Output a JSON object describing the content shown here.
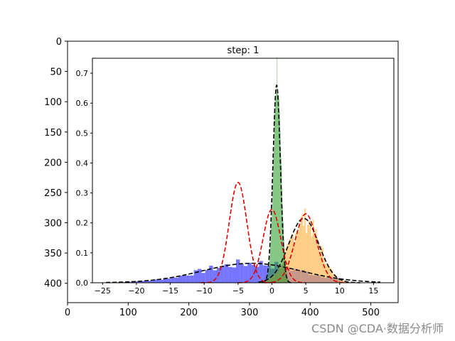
{
  "chart_data": [
    {
      "role": "outer-image-axes",
      "type": "image",
      "x_ticks": [
        "0",
        "100",
        "200",
        "300",
        "400",
        "500"
      ],
      "y_ticks": [
        "0",
        "50",
        "100",
        "150",
        "200",
        "250",
        "300",
        "350",
        "400"
      ],
      "xlim": [
        0,
        545
      ],
      "ylim": [
        432,
        0
      ]
    },
    {
      "role": "inner-plot",
      "type": "histogram-with-density-curves",
      "title": "step: 1",
      "xlim": [
        -26.5,
        18
      ],
      "ylim": [
        0,
        0.75
      ],
      "x_ticks": [
        "−25",
        "−20",
        "−15",
        "−10",
        "−5",
        "0",
        "5",
        "10",
        "15"
      ],
      "y_ticks": [
        "0.0",
        "0.1",
        "0.2",
        "0.3",
        "0.4",
        "0.5",
        "0.6",
        "0.7"
      ],
      "grid": false,
      "histograms": [
        {
          "color": "#4040ff",
          "opacity": 0.72,
          "dist": "normal",
          "mean": -3,
          "sd": 7.3,
          "peak": 0.065,
          "range": [
            -24,
            10
          ],
          "noise": 0.25
        },
        {
          "color": "#ffb03c",
          "opacity": 0.62,
          "dist": "normal",
          "mean": 4.8,
          "sd": 2.2,
          "peak": 0.21,
          "range": [
            -1,
            11
          ],
          "noise": 0.2
        },
        {
          "color": "#2c9c2c",
          "opacity": 0.62,
          "dist": "normal",
          "mean": 0.8,
          "sd": 0.55,
          "peak": 0.7,
          "range": [
            -1.2,
            2.8
          ],
          "noise": 0.1
        }
      ],
      "curves": [
        {
          "color": "#000000",
          "mean": -3,
          "sd": 7.3,
          "peak": 0.065,
          "from": -24.5,
          "to": 16
        },
        {
          "color": "#000000",
          "mean": 0.7,
          "sd": 0.55,
          "peak": 0.66,
          "from": -1.5,
          "to": 3
        },
        {
          "color": "#000000",
          "mean": 4.7,
          "sd": 2.2,
          "peak": 0.215,
          "from": -2,
          "to": 13
        },
        {
          "color": "#e00000",
          "mean": -5,
          "sd": 1.3,
          "peak": 0.335,
          "from": -10.5,
          "to": 0.5
        },
        {
          "color": "#e00000",
          "mean": 0,
          "sd": 1.3,
          "peak": 0.245,
          "from": -5,
          "to": 5
        },
        {
          "color": "#e00000",
          "mean": 5,
          "sd": 1.6,
          "peak": 0.23,
          "from": -1,
          "to": 11
        }
      ]
    }
  ],
  "watermark": "CSDN @CDA·数据分析师"
}
